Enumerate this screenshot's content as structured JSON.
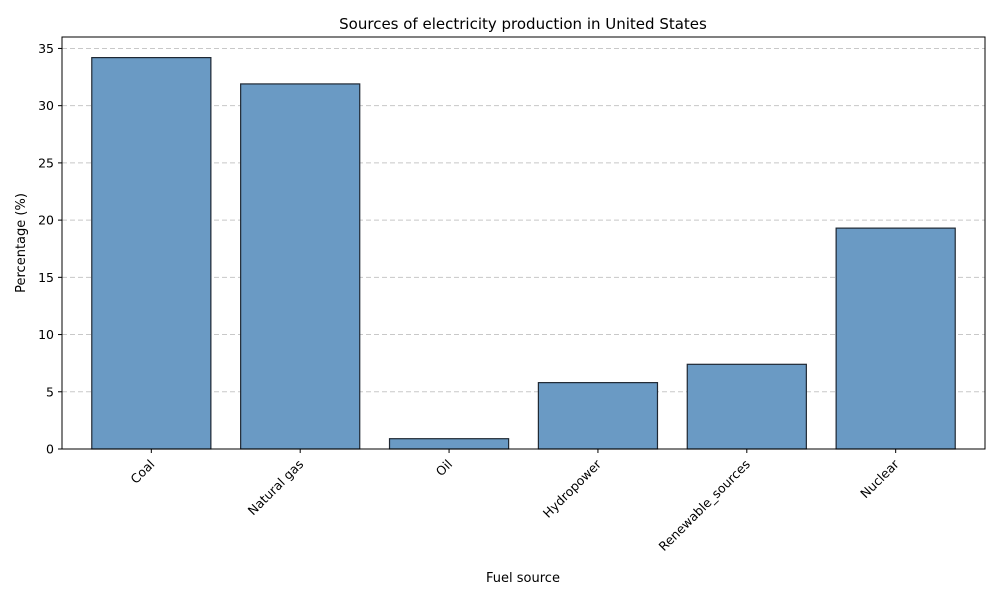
{
  "chart_data": {
    "type": "bar",
    "title": "Sources of electricity production in United States",
    "xlabel": "Fuel source",
    "ylabel": "Percentage (%)",
    "categories": [
      "Coal",
      "Natural gas",
      "Oil",
      "Hydropower",
      "Renewable_sources",
      "Nuclear"
    ],
    "values": [
      34.2,
      31.9,
      0.9,
      5.8,
      7.4,
      19.3
    ],
    "ylim": [
      0,
      36
    ],
    "yticks": [
      0,
      5,
      10,
      15,
      20,
      25,
      30,
      35
    ],
    "grid": "y-axis dashed",
    "legend": "none",
    "bar_color": "#6a9ac4",
    "bar_edge_color": "#1f2833"
  }
}
